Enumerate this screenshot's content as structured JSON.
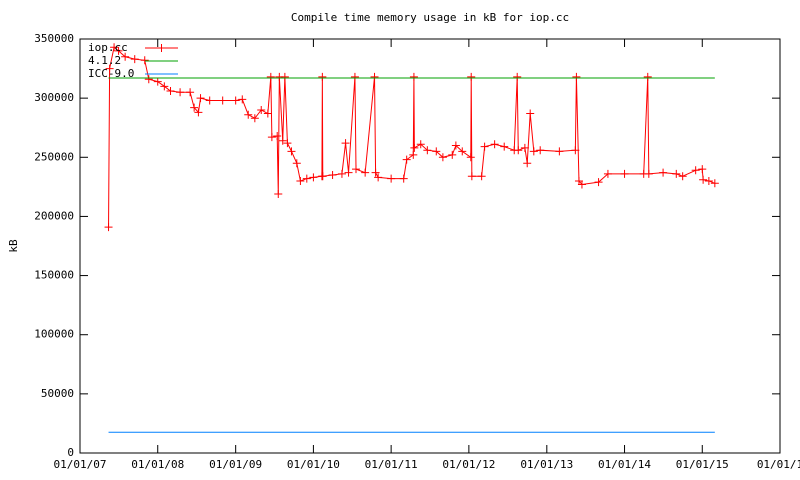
{
  "chart_data": {
    "type": "line",
    "title": "Compile time memory usage in kB for iop.cc",
    "y_label": "kB",
    "xlim": [
      "2007-01-01",
      "2016-01-01"
    ],
    "xticks": [
      {
        "value": "2007-01-01",
        "label": "01/01/07"
      },
      {
        "value": "2008-01-01",
        "label": "01/01/08"
      },
      {
        "value": "2009-01-01",
        "label": "01/01/09"
      },
      {
        "value": "2010-01-01",
        "label": "01/01/10"
      },
      {
        "value": "2011-01-01",
        "label": "01/01/11"
      },
      {
        "value": "2012-01-01",
        "label": "01/01/12"
      },
      {
        "value": "2013-01-01",
        "label": "01/01/13"
      },
      {
        "value": "2014-01-01",
        "label": "01/01/14"
      },
      {
        "value": "2015-01-01",
        "label": "01/01/15"
      },
      {
        "value": "2016-01-01",
        "label": "01/01/1"
      }
    ],
    "ylim": [
      0,
      350000
    ],
    "yticks": [
      0,
      50000,
      100000,
      150000,
      200000,
      250000,
      300000,
      350000
    ],
    "legend": "top-left",
    "grid": false,
    "series": [
      {
        "name": "iop.cc",
        "color": "#ff0000",
        "markers": true,
        "x": [
          "2007-05-15",
          "2007-05-20",
          "2007-06-10",
          "2007-07-01",
          "2007-08-01",
          "2007-09-15",
          "2007-11-01",
          "2007-11-20",
          "2008-01-01",
          "2008-02-01",
          "2008-03-01",
          "2008-04-15",
          "2008-06-01",
          "2008-06-20",
          "2008-07-10",
          "2008-07-20",
          "2008-09-01",
          "2008-11-01",
          "2009-01-01",
          "2009-02-01",
          "2009-03-01",
          "2009-04-01",
          "2009-05-01",
          "2009-06-01",
          "2009-06-15",
          "2009-06-20",
          "2009-07-15",
          "2009-07-20",
          "2009-07-25",
          "2009-08-10",
          "2009-08-20",
          "2009-09-01",
          "2009-09-20",
          "2009-10-15",
          "2009-11-01",
          "2009-12-01",
          "2010-01-01",
          "2010-02-10",
          "2010-02-12",
          "2010-02-14",
          "2010-04-01",
          "2010-05-15",
          "2010-06-01",
          "2010-06-15",
          "2010-07-15",
          "2010-07-20",
          "2010-09-01",
          "2010-10-15",
          "2010-10-20",
          "2010-11-01",
          "2011-01-01",
          "2011-03-01",
          "2011-03-15",
          "2011-04-15",
          "2011-04-18",
          "2011-04-20",
          "2011-05-20",
          "2011-06-20",
          "2011-08-01",
          "2011-09-01",
          "2011-10-15",
          "2011-11-01",
          "2011-12-01",
          "2012-01-10",
          "2012-01-12",
          "2012-01-15",
          "2012-03-01",
          "2012-03-15",
          "2012-05-01",
          "2012-06-15",
          "2012-08-01",
          "2012-08-15",
          "2012-08-20",
          "2012-09-20",
          "2012-10-01",
          "2012-10-15",
          "2012-11-01",
          "2012-12-01",
          "2013-03-01",
          "2013-05-15",
          "2013-05-20",
          "2013-06-01",
          "2013-06-15",
          "2013-09-01",
          "2013-10-15",
          "2014-01-01",
          "2014-04-01",
          "2014-04-20",
          "2014-04-25",
          "2014-07-01",
          "2014-09-01",
          "2014-10-01",
          "2014-12-01",
          "2015-01-01",
          "2015-01-05",
          "2015-02-01",
          "2015-03-01"
        ],
        "values": [
          191000,
          325000,
          343000,
          340000,
          335000,
          333000,
          332000,
          316000,
          314000,
          310000,
          306000,
          305000,
          305000,
          292000,
          288000,
          300000,
          298000,
          298000,
          298000,
          299000,
          286000,
          283000,
          290000,
          287000,
          318000,
          267000,
          268000,
          219000,
          318000,
          264000,
          318000,
          262000,
          255000,
          245000,
          230000,
          232000,
          233000,
          234000,
          318000,
          234000,
          235000,
          236000,
          262000,
          237000,
          318000,
          240000,
          237000,
          318000,
          237000,
          233000,
          232000,
          232000,
          248000,
          252000,
          318000,
          258000,
          261000,
          256000,
          255000,
          250000,
          252000,
          260000,
          255000,
          250000,
          318000,
          234000,
          234000,
          259000,
          261000,
          259000,
          256000,
          318000,
          256000,
          258000,
          245000,
          287000,
          255000,
          256000,
          255000,
          256000,
          318000,
          230000,
          227000,
          229000,
          236000,
          236000,
          236000,
          318000,
          236000,
          237000,
          236000,
          234000,
          239000,
          240000,
          231000,
          230000,
          228000
        ]
      },
      {
        "name": "4.1.2",
        "color": "#00a000",
        "markers": false,
        "x": [
          "2007-05-15",
          "2015-03-01"
        ],
        "values": [
          317000,
          317000
        ]
      },
      {
        "name": "ICC-9.0",
        "color": "#0080ff",
        "markers": false,
        "x": [
          "2007-05-15",
          "2015-03-01"
        ],
        "values": [
          17500,
          17500
        ]
      }
    ]
  }
}
